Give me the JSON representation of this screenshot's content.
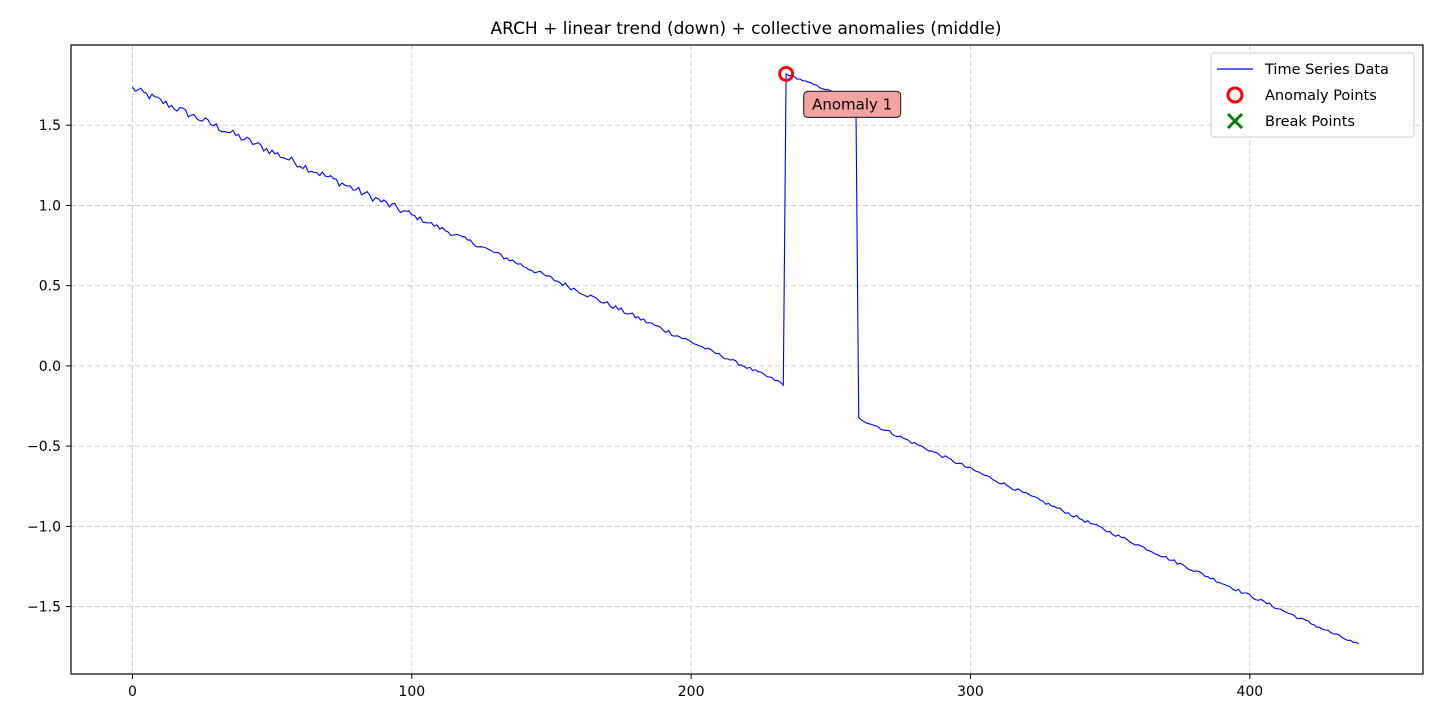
{
  "chart_data": {
    "type": "line",
    "title": "ARCH + linear trend (down) + collective anomalies (middle)",
    "xlabel": "",
    "ylabel": "",
    "xlim": [
      -22,
      462
    ],
    "ylim": [
      -1.92,
      2.0
    ],
    "x_ticks": [
      0,
      100,
      200,
      300,
      400
    ],
    "x_tick_labels": [
      "0",
      "100",
      "200",
      "300",
      "400"
    ],
    "y_ticks": [
      -1.5,
      -1.0,
      -0.5,
      0.0,
      0.5,
      1.0,
      1.5
    ],
    "y_tick_labels": [
      "−1.5",
      "−1.0",
      "−0.5",
      "0.0",
      "0.5",
      "1.0",
      "1.5"
    ],
    "grid": true,
    "legend_position": "top-right",
    "series": [
      {
        "name": "Time Series Data",
        "color": "#0000ff",
        "x_start": 0,
        "x_end": 439,
        "baseline_start": 1.73,
        "baseline_end": -1.74,
        "anomaly_segment": {
          "x_start": 234,
          "x_end": 259,
          "y_start": 1.82,
          "y_end": 1.65
        },
        "jump_down_value": -0.12,
        "resume_value": -0.32
      }
    ],
    "anomaly_points": {
      "name": "Anomaly Points",
      "color": "#ff0000",
      "points": [
        {
          "x": 234,
          "y": 1.82
        }
      ]
    },
    "break_points": {
      "name": "Break Points",
      "color": "#008000",
      "points": []
    },
    "annotations": [
      {
        "text": "Anomaly 1",
        "x": 241,
        "y": 1.63,
        "bg_color": "#f4a3a3"
      }
    ]
  }
}
